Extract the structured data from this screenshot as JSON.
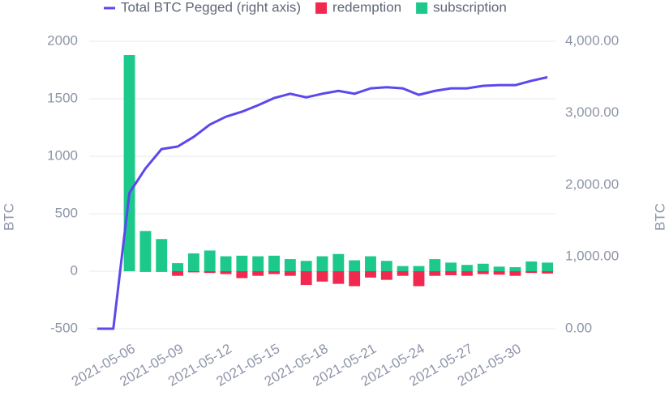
{
  "chart_data": {
    "type": "bar",
    "categories": [
      null,
      null,
      "2021-05-06",
      null,
      null,
      "2021-05-09",
      null,
      null,
      "2021-05-12",
      null,
      null,
      "2021-05-15",
      null,
      null,
      "2021-05-18",
      null,
      null,
      "2021-05-21",
      null,
      null,
      "2021-05-24",
      null,
      null,
      "2021-05-27",
      null,
      null,
      "2021-05-30",
      null,
      null
    ],
    "series": [
      {
        "name": "Total BTC Pegged (right axis)",
        "type": "line",
        "axis": "y2",
        "color": "#5b48ee",
        "values": [
          0,
          0,
          1890,
          2230,
          2500,
          2535,
          2670,
          2840,
          2950,
          3020,
          3110,
          3210,
          3270,
          3220,
          3270,
          3310,
          3270,
          3345,
          3360,
          3345,
          3255,
          3310,
          3345,
          3345,
          3380,
          3390,
          3390,
          3450,
          3500
        ]
      },
      {
        "name": "redemption",
        "color": "#f2294f",
        "values": [
          0,
          0,
          0,
          -5,
          -5,
          -40,
          -10,
          -15,
          -25,
          -60,
          -40,
          -25,
          -40,
          -120,
          -90,
          -110,
          -130,
          -55,
          -75,
          -40,
          -130,
          -40,
          -35,
          -40,
          -25,
          -30,
          -40,
          -15,
          -20
        ]
      },
      {
        "name": "subscription",
        "color": "#1cc98b",
        "values": [
          0,
          0,
          1880,
          350,
          280,
          70,
          155,
          180,
          130,
          135,
          130,
          135,
          105,
          90,
          130,
          150,
          95,
          130,
          90,
          45,
          45,
          105,
          75,
          55,
          65,
          40,
          35,
          85,
          75
        ]
      }
    ],
    "ylim": [
      -500,
      2000
    ],
    "yticks": [
      -500,
      0,
      500,
      1000,
      1500,
      2000
    ],
    "y2lim": [
      0,
      4000
    ],
    "y2ticks": [
      {
        "value": 0,
        "label": "0.00"
      },
      {
        "value": 1000,
        "label": "1,000.00"
      },
      {
        "value": 2000,
        "label": "2,000.00"
      },
      {
        "value": 3000,
        "label": "3,000.00"
      },
      {
        "value": 4000,
        "label": "4,000.00"
      }
    ],
    "ylabel": "BTC",
    "y2label": "BTC",
    "grid": true
  }
}
